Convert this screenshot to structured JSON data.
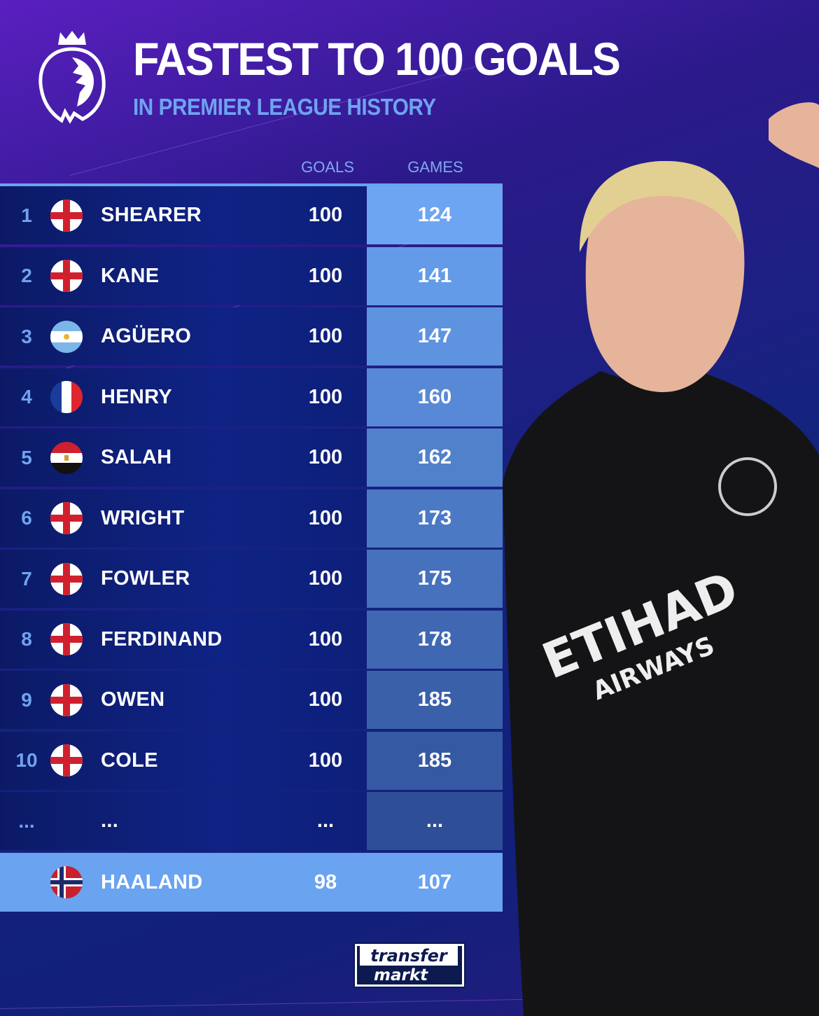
{
  "header": {
    "title": "FASTEST TO 100 GOALS",
    "subtitle": "IN PREMIER LEAGUE HISTORY",
    "logo": "premier-league-lion-icon"
  },
  "columns": {
    "goals": "GOALS",
    "games": "GAMES"
  },
  "rows": [
    {
      "rank": "1",
      "flag": "england",
      "name": "SHEARER",
      "goals": "100",
      "games": "124"
    },
    {
      "rank": "2",
      "flag": "england",
      "name": "KANE",
      "goals": "100",
      "games": "141"
    },
    {
      "rank": "3",
      "flag": "argentina",
      "name": "AGÜERO",
      "goals": "100",
      "games": "147"
    },
    {
      "rank": "4",
      "flag": "france",
      "name": "HENRY",
      "goals": "100",
      "games": "160"
    },
    {
      "rank": "5",
      "flag": "egypt",
      "name": "SALAH",
      "goals": "100",
      "games": "162"
    },
    {
      "rank": "6",
      "flag": "england",
      "name": "WRIGHT",
      "goals": "100",
      "games": "173"
    },
    {
      "rank": "7",
      "flag": "england",
      "name": "FOWLER",
      "goals": "100",
      "games": "175"
    },
    {
      "rank": "8",
      "flag": "england",
      "name": "FERDINAND",
      "goals": "100",
      "games": "178"
    },
    {
      "rank": "9",
      "flag": "england",
      "name": "OWEN",
      "goals": "100",
      "games": "185"
    },
    {
      "rank": "10",
      "flag": "england",
      "name": "COLE",
      "goals": "100",
      "games": "185"
    },
    {
      "rank": "...",
      "flag": "",
      "name": "...",
      "goals": "...",
      "games": "..."
    }
  ],
  "highlight": {
    "flag": "norway",
    "name": "HAALAND",
    "goals": "98",
    "games": "107"
  },
  "branding": {
    "logo_text_1": "transfer",
    "logo_text_2": "markt",
    "shirt_text": "ETIHAD AIRWAYS"
  },
  "colors": {
    "accent": "#6aa3f0",
    "highlight_row": "#6aa3f0",
    "navy": "#0f2385"
  }
}
